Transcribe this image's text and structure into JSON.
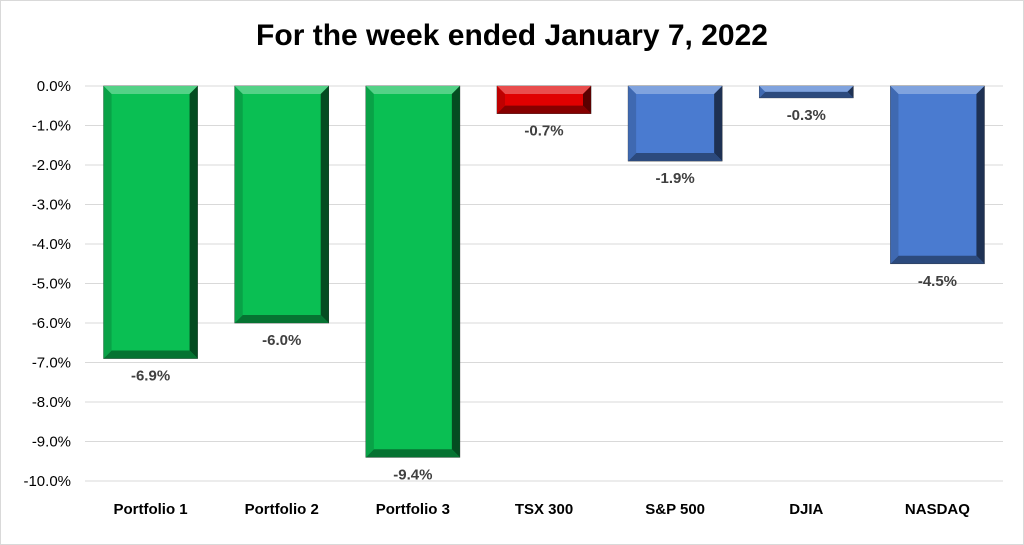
{
  "chart_data": {
    "type": "bar",
    "title": "For the week ended January 7, 2022",
    "categories": [
      "Portfolio 1",
      "Portfolio 2",
      "Portfolio 3",
      "TSX 300",
      "S&P 500",
      "DJIA",
      "NASDAQ"
    ],
    "values": [
      -6.9,
      -6.0,
      -9.4,
      -0.7,
      -1.9,
      -0.3,
      -4.5
    ],
    "data_labels": [
      "-6.9%",
      "-6.0%",
      "-9.4%",
      "-0.7%",
      "-1.9%",
      "-0.3%",
      "-4.5%"
    ],
    "colors": [
      "#0abf53",
      "#0abf53",
      "#0abf53",
      "#e00000",
      "#4a7bd0",
      "#4a7bd0",
      "#4a7bd0"
    ],
    "ylim": [
      -10,
      0
    ],
    "yticks": [
      "0.0%",
      "-1.0%",
      "-2.0%",
      "-3.0%",
      "-4.0%",
      "-5.0%",
      "-6.0%",
      "-7.0%",
      "-8.0%",
      "-9.0%",
      "-10.0%"
    ],
    "grid": true,
    "legend": "none",
    "xlabel": "",
    "ylabel": ""
  }
}
